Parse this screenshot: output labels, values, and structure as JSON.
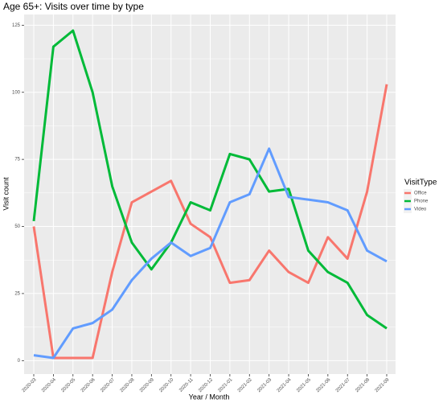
{
  "chart_data": {
    "type": "line",
    "title": "Age 65+: Visits over time by type",
    "x_label": "Year / Month",
    "y_label": "Visit count",
    "legend_title": "VisitType",
    "categories": [
      "2020-03",
      "2020-04",
      "2020-05",
      "2020-06",
      "2020-07",
      "2020-08",
      "2020-09",
      "2020-10",
      "2020-11",
      "2020-12",
      "2021-01",
      "2021-02",
      "2021-03",
      "2021-04",
      "2021-05",
      "2021-06",
      "2021-07",
      "2021-08",
      "2021-09"
    ],
    "series": [
      {
        "name": "Office",
        "color": "#F8766D",
        "values": [
          50,
          1,
          1,
          1,
          33,
          59,
          63,
          67,
          51,
          46,
          29,
          30,
          41,
          33,
          29,
          46,
          38,
          63,
          103
        ]
      },
      {
        "name": "Phone",
        "color": "#00BA38",
        "values": [
          52,
          117,
          123,
          100,
          65,
          44,
          34,
          44,
          59,
          56,
          77,
          75,
          63,
          64,
          41,
          33,
          29,
          17,
          12
        ]
      },
      {
        "name": "Video",
        "color": "#619CFF",
        "values": [
          2,
          1,
          12,
          14,
          19,
          30,
          38,
          44,
          39,
          42,
          59,
          62,
          79,
          61,
          60,
          59,
          56,
          41,
          37
        ]
      }
    ],
    "ylim": [
      -5,
      129
    ],
    "yticks": [
      0,
      25,
      50,
      75,
      100,
      125
    ],
    "grid": true,
    "legend": "right"
  }
}
